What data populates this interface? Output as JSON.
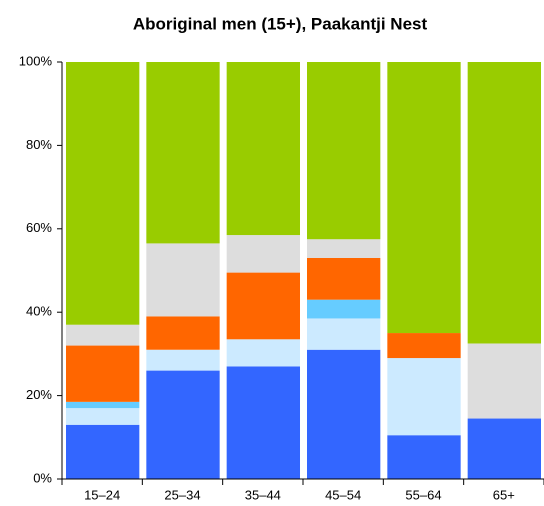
{
  "chart_data": {
    "type": "stacked_bar",
    "title": "Aboriginal men (15+), Paakantji Nest",
    "categories": [
      "15–24",
      "25–34",
      "35–44",
      "45–54",
      "55–64",
      "65+"
    ],
    "series": [
      {
        "color": "#3366ff",
        "values": [
          13,
          26,
          27,
          31,
          10.5,
          14.5
        ]
      },
      {
        "color": "#cceaff",
        "values": [
          4,
          5,
          6.5,
          7.5,
          18.5,
          0
        ]
      },
      {
        "color": "#66ccff",
        "values": [
          1.5,
          0,
          0,
          4.5,
          0,
          0
        ]
      },
      {
        "color": "#ff6600",
        "values": [
          13.5,
          8,
          16,
          10,
          6,
          0
        ]
      },
      {
        "color": "#dddddd",
        "values": [
          5,
          17.5,
          9,
          4.5,
          0,
          18
        ]
      },
      {
        "color": "#99cc00",
        "values": [
          63,
          43.5,
          41.5,
          42.5,
          65,
          67.5
        ]
      }
    ],
    "ylim": [
      0,
      100
    ],
    "yticks": [
      {
        "value": 0,
        "label": "0%"
      },
      {
        "value": 20,
        "label": "20%"
      },
      {
        "value": 40,
        "label": "40%"
      },
      {
        "value": 60,
        "label": "60%"
      },
      {
        "value": 80,
        "label": "80%"
      },
      {
        "value": 100,
        "label": "100%"
      }
    ]
  }
}
